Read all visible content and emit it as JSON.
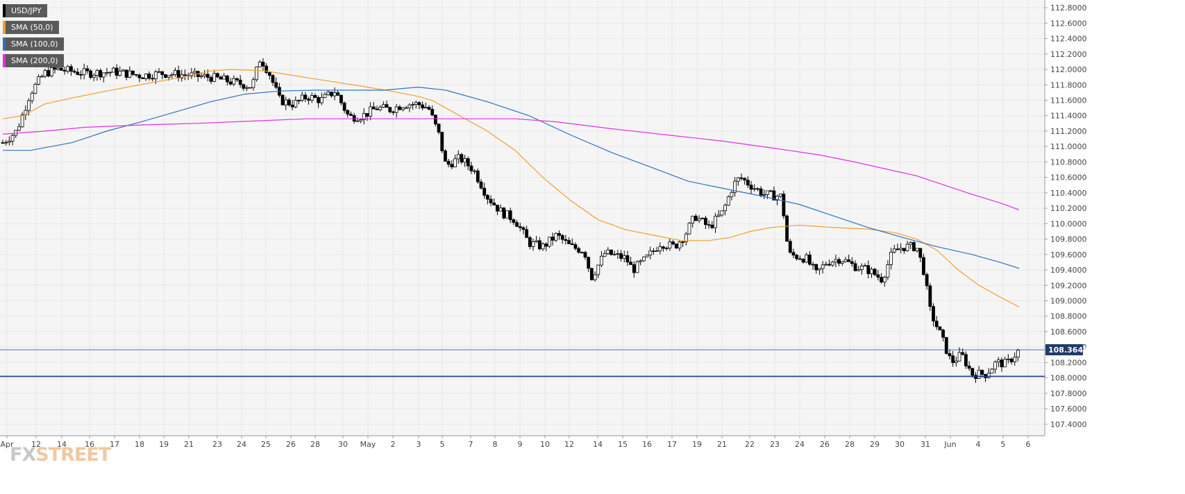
{
  "chart_data": {
    "type": "candlestick",
    "ylim": [
      107.25,
      112.9
    ],
    "y_ticks": [
      "112.8000",
      "112.6000",
      "112.4000",
      "112.2000",
      "112.0000",
      "111.8000",
      "111.6000",
      "111.4000",
      "111.2000",
      "111.0000",
      "110.8000",
      "110.6000",
      "110.4000",
      "110.2000",
      "110.0000",
      "109.8000",
      "109.6000",
      "109.4000",
      "109.2000",
      "109.0000",
      "108.8000",
      "108.6000",
      "108.4000",
      "108.2000",
      "108.0000",
      "107.8000",
      "107.6000",
      "107.4000"
    ],
    "y_tick_values": [
      112.8,
      112.6,
      112.4,
      112.2,
      112.0,
      111.8,
      111.6,
      111.4,
      111.2,
      111.0,
      110.8,
      110.6,
      110.4,
      110.2,
      110.0,
      109.8,
      109.6,
      109.4,
      109.2,
      109.0,
      108.8,
      108.6,
      108.4,
      108.2,
      108.0,
      107.8,
      107.6,
      107.4
    ],
    "x_ticks": [
      "Apr",
      "12",
      "14",
      "16",
      "17",
      "18",
      "19",
      "21",
      "23",
      "24",
      "25",
      "26",
      "28",
      "30",
      "May",
      "2",
      "3",
      "5",
      "7",
      "8",
      "9",
      "10",
      "12",
      "14",
      "15",
      "16",
      "17",
      "19",
      "21",
      "22",
      "23",
      "24",
      "26",
      "28",
      "29",
      "30",
      "31",
      "Jun",
      "4",
      "5",
      "6"
    ],
    "price_anchors": [
      [
        0,
        111.05
      ],
      [
        20,
        111.2
      ],
      [
        40,
        111.7
      ],
      [
        60,
        111.95
      ],
      [
        80,
        112.0
      ],
      [
        120,
        111.95
      ],
      [
        160,
        111.97
      ],
      [
        200,
        111.92
      ],
      [
        230,
        111.95
      ],
      [
        260,
        111.93
      ],
      [
        300,
        111.9
      ],
      [
        340,
        111.82
      ],
      [
        360,
        111.78
      ],
      [
        372,
        112.15
      ],
      [
        385,
        111.95
      ],
      [
        400,
        111.6
      ],
      [
        420,
        111.55
      ],
      [
        440,
        111.65
      ],
      [
        460,
        111.6
      ],
      [
        480,
        111.72
      ],
      [
        500,
        111.38
      ],
      [
        520,
        111.4
      ],
      [
        540,
        111.5
      ],
      [
        560,
        111.48
      ],
      [
        580,
        111.55
      ],
      [
        600,
        111.55
      ],
      [
        615,
        111.5
      ],
      [
        630,
        111.15
      ],
      [
        640,
        110.75
      ],
      [
        660,
        110.85
      ],
      [
        680,
        110.7
      ],
      [
        700,
        110.35
      ],
      [
        720,
        110.15
      ],
      [
        740,
        110.05
      ],
      [
        760,
        109.75
      ],
      [
        780,
        109.7
      ],
      [
        800,
        109.85
      ],
      [
        820,
        109.7
      ],
      [
        840,
        109.65
      ],
      [
        850,
        109.3
      ],
      [
        870,
        109.62
      ],
      [
        900,
        109.55
      ],
      [
        910,
        109.4
      ],
      [
        930,
        109.55
      ],
      [
        950,
        109.75
      ],
      [
        970,
        109.7
      ],
      [
        985,
        109.85
      ],
      [
        1000,
        110.1
      ],
      [
        1020,
        109.95
      ],
      [
        1040,
        110.15
      ],
      [
        1055,
        110.5
      ],
      [
        1065,
        110.6
      ],
      [
        1080,
        110.5
      ],
      [
        1100,
        110.38
      ],
      [
        1125,
        110.35
      ],
      [
        1135,
        109.6
      ],
      [
        1160,
        109.55
      ],
      [
        1175,
        109.35
      ],
      [
        1190,
        109.5
      ],
      [
        1210,
        109.55
      ],
      [
        1230,
        109.45
      ],
      [
        1250,
        109.4
      ],
      [
        1270,
        109.28
      ],
      [
        1285,
        109.62
      ],
      [
        1300,
        109.7
      ],
      [
        1320,
        109.7
      ],
      [
        1330,
        109.4
      ],
      [
        1340,
        108.85
      ],
      [
        1355,
        108.55
      ],
      [
        1370,
        108.2
      ],
      [
        1385,
        108.3
      ],
      [
        1400,
        108.05
      ],
      [
        1420,
        108.05
      ],
      [
        1435,
        108.2
      ],
      [
        1450,
        108.18
      ],
      [
        1468,
        108.36
      ]
    ],
    "series": [
      {
        "name": "USD/JPY",
        "type": "candlestick",
        "color": "#000000"
      },
      {
        "name": "SMA (50,0)",
        "type": "line",
        "color": "#f0a030",
        "points": [
          [
            0,
            111.36
          ],
          [
            30,
            111.4
          ],
          [
            60,
            111.55
          ],
          [
            100,
            111.63
          ],
          [
            150,
            111.72
          ],
          [
            210,
            111.82
          ],
          [
            260,
            111.9
          ],
          [
            300,
            111.98
          ],
          [
            330,
            112.0
          ],
          [
            380,
            111.98
          ],
          [
            420,
            111.92
          ],
          [
            470,
            111.85
          ],
          [
            520,
            111.78
          ],
          [
            560,
            111.72
          ],
          [
            600,
            111.65
          ],
          [
            620,
            111.6
          ],
          [
            650,
            111.45
          ],
          [
            700,
            111.2
          ],
          [
            740,
            110.95
          ],
          [
            780,
            110.6
          ],
          [
            820,
            110.3
          ],
          [
            860,
            110.05
          ],
          [
            900,
            109.92
          ],
          [
            940,
            109.85
          ],
          [
            980,
            109.78
          ],
          [
            1020,
            109.78
          ],
          [
            1050,
            109.82
          ],
          [
            1080,
            109.9
          ],
          [
            1110,
            109.95
          ],
          [
            1150,
            109.98
          ],
          [
            1200,
            109.95
          ],
          [
            1250,
            109.93
          ],
          [
            1290,
            109.88
          ],
          [
            1320,
            109.8
          ],
          [
            1350,
            109.65
          ],
          [
            1380,
            109.4
          ],
          [
            1410,
            109.2
          ],
          [
            1440,
            109.05
          ],
          [
            1468,
            108.92
          ]
        ]
      },
      {
        "name": "SMA (100,0)",
        "type": "line",
        "color": "#3070c0",
        "points": [
          [
            0,
            110.95
          ],
          [
            40,
            110.95
          ],
          [
            100,
            111.05
          ],
          [
            150,
            111.2
          ],
          [
            200,
            111.32
          ],
          [
            250,
            111.45
          ],
          [
            300,
            111.58
          ],
          [
            350,
            111.68
          ],
          [
            400,
            111.72
          ],
          [
            450,
            111.73
          ],
          [
            500,
            111.73
          ],
          [
            550,
            111.73
          ],
          [
            600,
            111.77
          ],
          [
            640,
            111.73
          ],
          [
            700,
            111.58
          ],
          [
            760,
            111.4
          ],
          [
            820,
            111.15
          ],
          [
            880,
            110.92
          ],
          [
            940,
            110.72
          ],
          [
            990,
            110.55
          ],
          [
            1050,
            110.44
          ],
          [
            1100,
            110.35
          ],
          [
            1150,
            110.25
          ],
          [
            1200,
            110.1
          ],
          [
            1250,
            109.95
          ],
          [
            1300,
            109.82
          ],
          [
            1350,
            109.7
          ],
          [
            1400,
            109.6
          ],
          [
            1440,
            109.5
          ],
          [
            1468,
            109.42
          ]
        ]
      },
      {
        "name": "SMA (200,0)",
        "type": "line",
        "color": "#e030e0",
        "points": [
          [
            0,
            111.16
          ],
          [
            60,
            111.2
          ],
          [
            120,
            111.25
          ],
          [
            200,
            111.28
          ],
          [
            280,
            111.3
          ],
          [
            360,
            111.33
          ],
          [
            440,
            111.36
          ],
          [
            520,
            111.36
          ],
          [
            600,
            111.36
          ],
          [
            680,
            111.36
          ],
          [
            740,
            111.36
          ],
          [
            800,
            111.32
          ],
          [
            880,
            111.23
          ],
          [
            960,
            111.15
          ],
          [
            1040,
            111.07
          ],
          [
            1120,
            110.97
          ],
          [
            1180,
            110.89
          ],
          [
            1230,
            110.8
          ],
          [
            1280,
            110.7
          ],
          [
            1320,
            110.62
          ],
          [
            1360,
            110.5
          ],
          [
            1400,
            110.38
          ],
          [
            1440,
            110.27
          ],
          [
            1468,
            110.18
          ]
        ]
      }
    ],
    "horizontal_lines": [
      108.02,
      108.3645
    ],
    "last_price": "108.3645"
  },
  "legend": [
    {
      "label": "USD/JPY",
      "color": "#000000"
    },
    {
      "label": "SMA (50,0)",
      "color": "#f0a030"
    },
    {
      "label": "SMA (100,0)",
      "color": "#3070c0"
    },
    {
      "label": "SMA (200,0)",
      "color": "#e030e0"
    }
  ],
  "logo": {
    "part1": "FX",
    "part2": "STREET"
  },
  "colors": {
    "grid": "#e8e8e8",
    "background": "#f5f5f5",
    "hline": "#1a3a8a",
    "price_tag": "#1f3a6a"
  }
}
